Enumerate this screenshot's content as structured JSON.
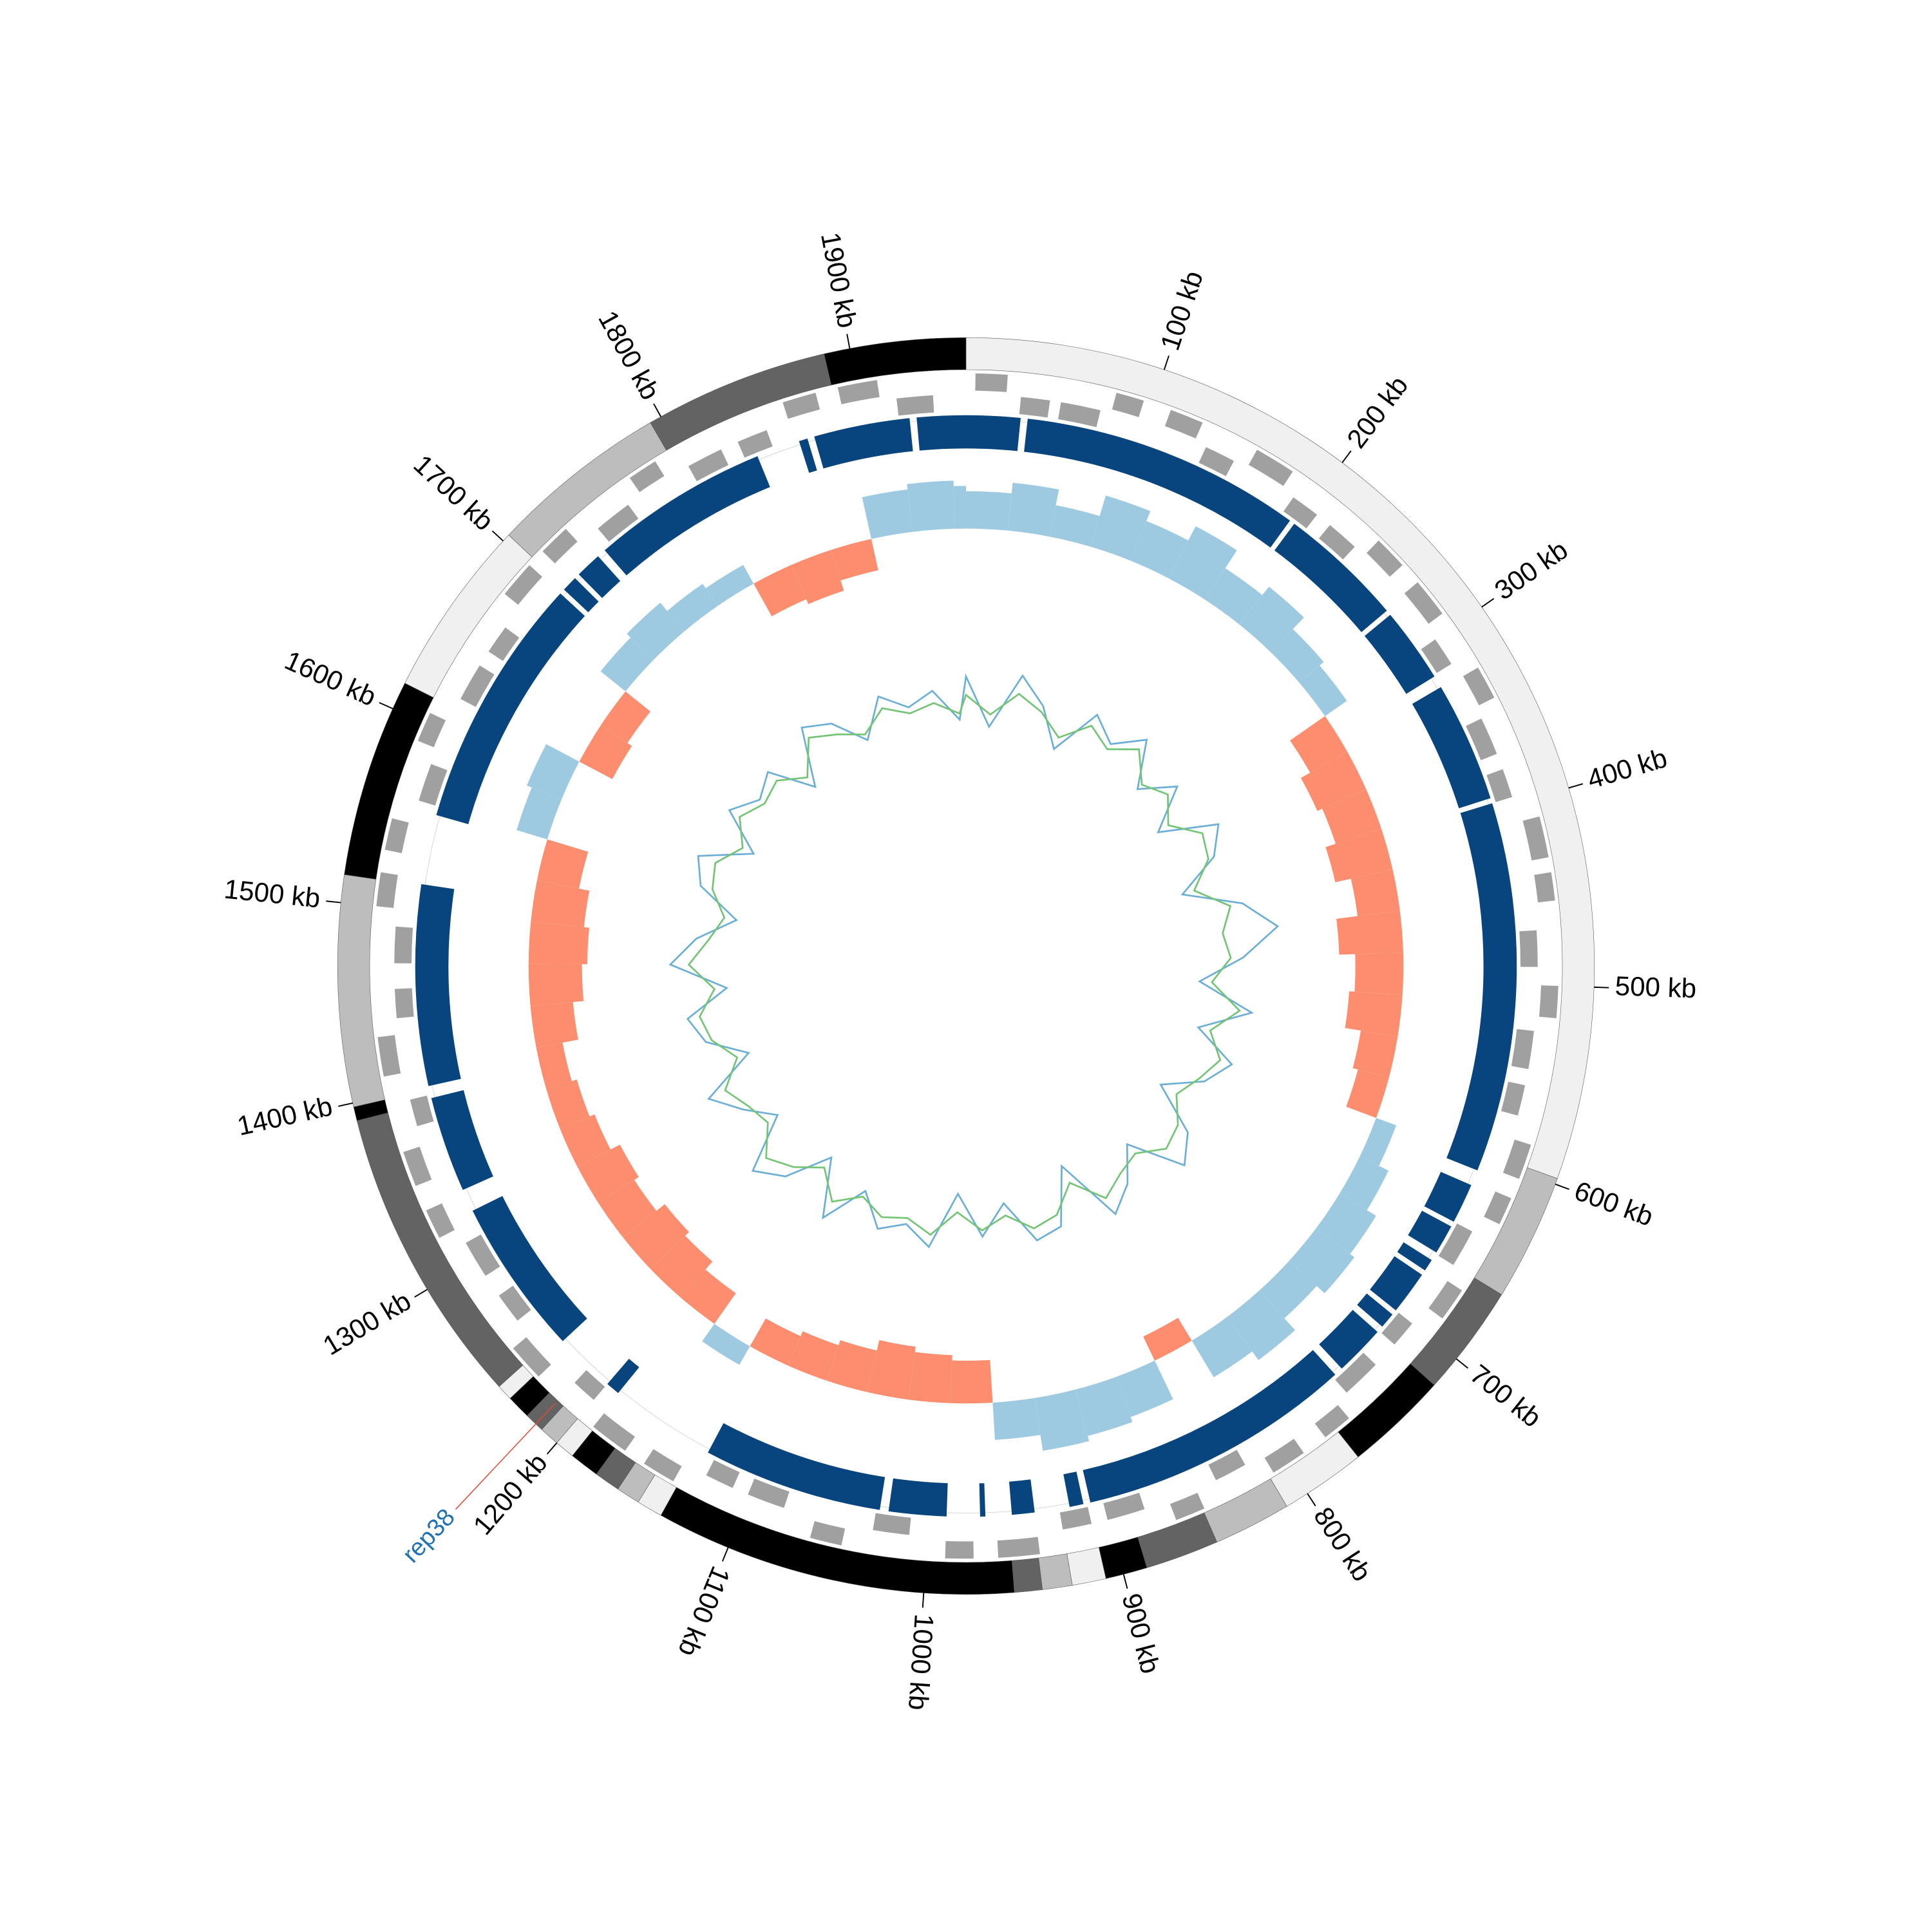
{
  "chart_data": {
    "type": "circular",
    "xlim": [
      0,
      1958
    ],
    "xticks": [
      {
        "value": 100,
        "label": "100 kb"
      },
      {
        "value": 200,
        "label": "200 kb"
      },
      {
        "value": 300,
        "label": "300 kb"
      },
      {
        "value": 400,
        "label": "400 kb"
      },
      {
        "value": 500,
        "label": "500 kb"
      },
      {
        "value": 600,
        "label": "600 kb"
      },
      {
        "value": 700,
        "label": "700 kb"
      },
      {
        "value": 800,
        "label": "800 kb"
      },
      {
        "value": 900,
        "label": "900 kb"
      },
      {
        "value": 1000,
        "label": "1000 kb"
      },
      {
        "value": 1100,
        "label": "1100 kb"
      },
      {
        "value": 1200,
        "label": "1200 kb"
      },
      {
        "value": 1300,
        "label": "1300 kb"
      },
      {
        "value": 1400,
        "label": "1400 kb"
      },
      {
        "value": 1500,
        "label": "1500 kb"
      },
      {
        "value": 1600,
        "label": "1600 kb"
      },
      {
        "value": 1700,
        "label": "1700 kb"
      },
      {
        "value": 1800,
        "label": "1800 kb"
      },
      {
        "value": 1900,
        "label": "1900 kb"
      }
    ],
    "bands": [
      {
        "start": 0,
        "end": 597,
        "color": "#f0f0f0"
      },
      {
        "start": 597,
        "end": 661,
        "color": "#bdbdbd"
      },
      {
        "start": 661,
        "end": 717,
        "color": "#636363"
      },
      {
        "start": 717,
        "end": 769,
        "color": "#000000"
      },
      {
        "start": 769,
        "end": 812,
        "color": "#f0f0f0"
      },
      {
        "start": 812,
        "end": 851,
        "color": "#bdbdbd"
      },
      {
        "start": 851,
        "end": 888,
        "color": "#636363"
      },
      {
        "start": 888,
        "end": 909,
        "color": "#000000"
      },
      {
        "start": 909,
        "end": 926,
        "color": "#f0f0f0"
      },
      {
        "start": 926,
        "end": 941,
        "color": "#bdbdbd"
      },
      {
        "start": 941,
        "end": 955,
        "color": "#636363"
      },
      {
        "start": 955,
        "end": 1137,
        "color": "#000000"
      },
      {
        "start": 1137,
        "end": 1150,
        "color": "#f0f0f0"
      },
      {
        "start": 1150,
        "end": 1162,
        "color": "#bdbdbd"
      },
      {
        "start": 1162,
        "end": 1175,
        "color": "#636363"
      },
      {
        "start": 1175,
        "end": 1190,
        "color": "#000000"
      },
      {
        "start": 1190,
        "end": 1200,
        "color": "#f0f0f0"
      },
      {
        "start": 1200,
        "end": 1210,
        "color": "#bdbdbd"
      },
      {
        "start": 1210,
        "end": 1220,
        "color": "#636363"
      },
      {
        "start": 1220,
        "end": 1232,
        "color": "#000000"
      },
      {
        "start": 1232,
        "end": 1240,
        "color": "#f0f0f0"
      },
      {
        "start": 1240,
        "end": 1391,
        "color": "#636363"
      },
      {
        "start": 1391,
        "end": 1398,
        "color": "#000000"
      },
      {
        "start": 1398,
        "end": 1514,
        "color": "#bdbdbd"
      },
      {
        "start": 1514,
        "end": 1614,
        "color": "#000000"
      },
      {
        "start": 1614,
        "end": 1704,
        "color": "#f0f0f0"
      },
      {
        "start": 1704,
        "end": 1794,
        "color": "#bdbdbd"
      },
      {
        "start": 1794,
        "end": 1887,
        "color": "#636363"
      },
      {
        "start": 1887,
        "end": 1958,
        "color": "#000000"
      }
    ],
    "genes": {
      "color": "#a0a0a0",
      "start": [
        5,
        30,
        52,
        80,
        110,
        135,
        160,
        190,
        215,
        240,
        270,
        300,
        325,
        350,
        380,
        410,
        440,
        470,
        500,
        525,
        555,
        585,
        615,
        640,
        670,
        700,
        730,
        760,
        790,
        820,
        850,
        880,
        910,
        940,
        975,
        1010,
        1045,
        1080,
        1110,
        1140,
        1170,
        1200,
        1230,
        1260,
        1290,
        1320,
        1350,
        1380,
        1410,
        1440,
        1470,
        1500,
        1530,
        1560,
        1590,
        1620,
        1650,
        1680,
        1710,
        1740,
        1770,
        1800,
        1830,
        1860,
        1890,
        1920
      ],
      "end": [
        22,
        46,
        74,
        95,
        128,
        152,
        182,
        206,
        233,
        258,
        291,
        316,
        343,
        371,
        396,
        432,
        455,
        490,
        517,
        546,
        572,
        604,
        630,
        661,
        688,
        715,
        752,
        776,
        809,
        838,
        866,
        901,
        926,
        962,
        990,
        1030,
        1062,
        1101,
        1126,
        1158,
        1191,
        1214,
        1250,
        1277,
        1311,
        1336,
        1369,
        1395,
        1431,
        1456,
        1490,
        1518,
        1547,
        1581,
        1606,
        1641,
        1666,
        1700,
        1727,
        1761,
        1786,
        1820,
        1847,
        1878,
        1911,
        1940
      ],
      "strand": [
        1,
        -1,
        -1,
        1,
        1,
        -1,
        1,
        -1,
        -1,
        1,
        1,
        -1,
        1,
        -1,
        -1,
        1,
        1,
        -1,
        1,
        -1,
        -1,
        1,
        1,
        -1,
        1,
        -1,
        -1,
        1,
        1,
        -1,
        1,
        -1,
        -1,
        1,
        1,
        -1,
        1,
        -1,
        -1,
        1,
        1,
        -1,
        1,
        -1,
        -1,
        1,
        1,
        -1,
        1,
        -1,
        -1,
        1,
        1,
        -1,
        1,
        -1,
        -1,
        1,
        1,
        -1,
        1,
        -1,
        -1,
        1,
        1,
        -1
      ]
    },
    "blocks": {
      "color": "#08457e",
      "start": [
        0,
        35,
        199,
        274,
        324,
        396,
        617,
        643,
        665,
        675,
        703,
        716,
        750,
        912,
        940,
        968,
        990,
        1028,
        1192,
        1235,
        1338,
        1400,
        1555,
        1703,
        1715,
        1735,
        1862,
        1871,
        1930
      ],
      "end": [
        31,
        196,
        271,
        317,
        393,
        608,
        640,
        660,
        672,
        700,
        712,
        745,
        908,
        920,
        953,
        971,
        1023,
        1131,
        1200,
        1325,
        1393,
        1515,
        1700,
        1712,
        1730,
        1837,
        1867,
        1926,
        1958
      ]
    },
    "gc_skew": {
      "positive_color": "#9ecae1",
      "negative_color": "#fc8d6e",
      "ylim": [
        -0.15,
        0.15
      ],
      "x": [
        0,
        30,
        60,
        90,
        120,
        150,
        180,
        210,
        240,
        270,
        300,
        330,
        360,
        390,
        420,
        450,
        480,
        510,
        540,
        570,
        600,
        630,
        660,
        690,
        720,
        750,
        780,
        810,
        840,
        870,
        900,
        930,
        960,
        990,
        1020,
        1050,
        1080,
        1110,
        1140,
        1170,
        1200,
        1230,
        1260,
        1290,
        1320,
        1350,
        1380,
        1410,
        1440,
        1470,
        1500,
        1530,
        1560,
        1590,
        1620,
        1650,
        1680,
        1710,
        1740,
        1770,
        1800,
        1830,
        1860,
        1890,
        1920,
        1950
      ],
      "values": [
        0.07,
        0.09,
        0.06,
        0.1,
        0.08,
        0.11,
        0.07,
        0.09,
        0.06,
        0.05,
        -0.08,
        -0.1,
        -0.09,
        -0.11,
        -0.08,
        -0.12,
        -0.09,
        -0.1,
        -0.07,
        -0.06,
        0.04,
        0.06,
        0.08,
        0.09,
        0.07,
        0.1,
        0.08,
        -0.05,
        0.08,
        0.09,
        0.1,
        0.07,
        -0.08,
        -0.09,
        -0.1,
        -0.08,
        -0.07,
        -0.06,
        0.04,
        -0.07,
        -0.09,
        -0.1,
        -0.08,
        -0.09,
        -0.07,
        -0.06,
        -0.05,
        -0.08,
        -0.1,
        -0.11,
        -0.1,
        -0.08,
        0.06,
        0.07,
        -0.07,
        -0.06,
        0.06,
        0.07,
        0.05,
        0.04,
        -0.07,
        -0.08,
        -0.06,
        0.08,
        0.09,
        0.08
      ]
    },
    "gc_content": {
      "ylim": [
        -1,
        1
      ],
      "x": [
        0,
        30,
        60,
        90,
        120,
        150,
        180,
        210,
        240,
        270,
        300,
        330,
        360,
        390,
        420,
        450,
        480,
        510,
        540,
        570,
        600,
        630,
        660,
        690,
        720,
        750,
        780,
        810,
        840,
        870,
        900,
        930,
        960,
        990,
        1020,
        1050,
        1080,
        1110,
        1140,
        1170,
        1200,
        1230,
        1260,
        1290,
        1320,
        1350,
        1380,
        1410,
        1440,
        1470,
        1500,
        1530,
        1560,
        1590,
        1620,
        1650,
        1680,
        1710,
        1740,
        1770,
        1800,
        1830,
        1860,
        1890,
        1920,
        1950
      ],
      "series": [
        {
          "color": "#6baed6",
          "values": [
            0.5,
            -0.3,
            0.6,
            0.2,
            -0.4,
            0.4,
            0.1,
            0.5,
            -0.2,
            0.3,
            -0.4,
            0.5,
            0.2,
            -0.5,
            0.4,
            0.9,
            0.3,
            -0.4,
            0.5,
            -0.3,
            0.4,
            0.1,
            -0.5,
            0.3,
            0.6,
            -0.3,
            0.2,
            0.5,
            -0.6,
            0.3,
            0.4,
            -0.3,
            0.2,
            -0.5,
            0.4,
            0.1,
            0.3,
            -0.2,
            0.5,
            -0.4,
            0.3,
            0.6,
            -0.3,
            0.1,
            0.5,
            -0.4,
            0.2,
            0.4,
            -0.3,
            0.6,
            0.2,
            -0.4,
            0.3,
            0.5,
            -0.3,
            0.4,
            0.1,
            0.3,
            -0.4,
            0.5,
            0.3,
            -0.2,
            0.4,
            0.1,
            0.3,
            -0.2
          ]
        },
        {
          "color": "#74c476",
          "values": [
            0.2,
            -0.1,
            0.3,
            0.1,
            -0.2,
            0.2,
            0,
            0.3,
            -0.1,
            0.1,
            -0.2,
            0.2,
            0.1,
            -0.3,
            0.2,
            0,
            0.1,
            -0.2,
            0.3,
            -0.1,
            0.2,
            0,
            -0.2,
            0.1,
            0.2,
            -0.1,
            0,
            0.2,
            -0.3,
            0.1,
            0.2,
            -0.1,
            0.1,
            -0.2,
            0.2,
            0,
            0.1,
            -0.1,
            0.2,
            -0.2,
            0.1,
            0.3,
            -0.1,
            0,
            0.2,
            -0.2,
            0.1,
            0.2,
            -0.1,
            0.3,
            0,
            -0.2,
            0.1,
            0.2,
            -0.1,
            0.2,
            0,
            0.1,
            -0.2,
            0.3,
            0.1,
            -0.1,
            0.2,
            0,
            0.1,
            -0.1
          ]
        }
      ]
    },
    "annotations": [
      {
        "label": "rep38",
        "position": 1214,
        "color": "#2171b5",
        "line_color": "#e34a33"
      }
    ]
  }
}
